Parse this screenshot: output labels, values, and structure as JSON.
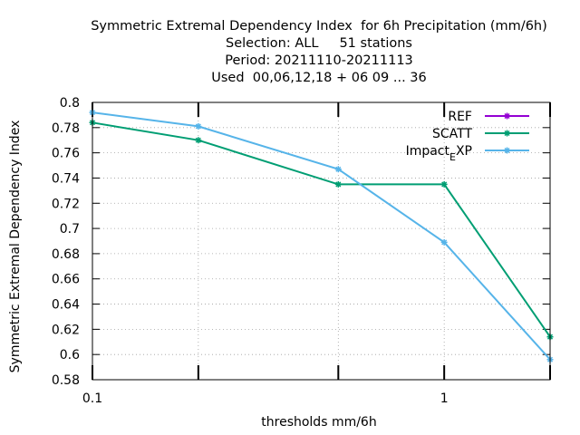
{
  "chart_data": {
    "type": "line",
    "title_lines": [
      "Symmetric Extremal Dependency Index  for 6h Precipitation (mm/6h)",
      "Selection: ALL     51 stations",
      "Period: 20211110-20211113",
      "Used  00,06,12,18 + 06 09 ... 36"
    ],
    "xlabel": "thresholds mm/6h",
    "ylabel": "Symmetric Extremal Dependency Index",
    "x_scale": "log",
    "xlim": [
      0.1,
      2
    ],
    "ylim": [
      0.58,
      0.8
    ],
    "x_ticks": [
      {
        "value": 0.1,
        "label": "0.1"
      },
      {
        "value": 0.2,
        "label": ""
      },
      {
        "value": 0.5,
        "label": ""
      },
      {
        "value": 1,
        "label": "1"
      },
      {
        "value": 2,
        "label": ""
      }
    ],
    "y_ticks": [
      {
        "value": 0.58,
        "label": "0.58"
      },
      {
        "value": 0.6,
        "label": "0.6"
      },
      {
        "value": 0.62,
        "label": "0.62"
      },
      {
        "value": 0.64,
        "label": "0.64"
      },
      {
        "value": 0.66,
        "label": "0.66"
      },
      {
        "value": 0.68,
        "label": "0.68"
      },
      {
        "value": 0.7,
        "label": "0.7"
      },
      {
        "value": 0.72,
        "label": "0.72"
      },
      {
        "value": 0.74,
        "label": "0.74"
      },
      {
        "value": 0.76,
        "label": "0.76"
      },
      {
        "value": 0.78,
        "label": "0.78"
      },
      {
        "value": 0.8,
        "label": "0.8"
      }
    ],
    "grid": true,
    "legend_position": "top-right",
    "series": [
      {
        "name": "REF",
        "color": "#9400d3",
        "x": [],
        "y": []
      },
      {
        "name": "SCATT",
        "color": "#009e73",
        "x": [
          0.1,
          0.2,
          0.5,
          1,
          2
        ],
        "y": [
          0.784,
          0.77,
          0.735,
          0.735,
          0.614
        ]
      },
      {
        "name": "Impact",
        "name_sub": "E",
        "name_tail": "XP",
        "color": "#56b4e9",
        "x": [
          0.1,
          0.2,
          0.5,
          1,
          2
        ],
        "y": [
          0.792,
          0.781,
          0.747,
          0.689,
          0.596
        ]
      }
    ]
  }
}
